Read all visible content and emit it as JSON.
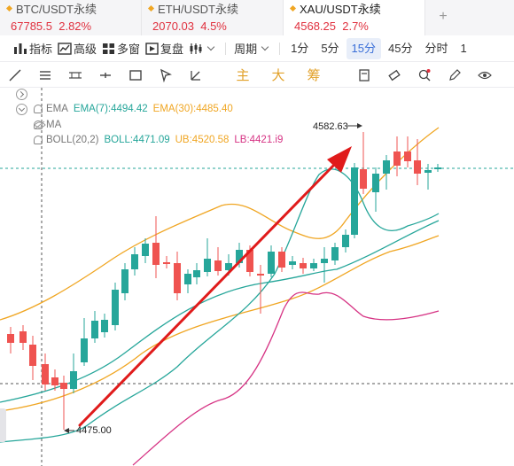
{
  "tabs": [
    {
      "name": "BTC/USDT永续",
      "price": "67785.5",
      "change": "2.82%"
    },
    {
      "name": "ETH/USDT永续",
      "price": "2070.03",
      "change": "4.5%"
    },
    {
      "name": "XAU/USDT永续",
      "price": "4568.25",
      "change": "2.7%",
      "active": true
    }
  ],
  "tab_add": "+",
  "toolbar": {
    "indicators": "指标",
    "advanced": "高级",
    "multi_chart": "多窗",
    "restore": "复盘",
    "period": "周期",
    "intervals": [
      "1分",
      "5分",
      "15分",
      "45分",
      "分时",
      "1"
    ],
    "active_interval": "15分"
  },
  "drawbar": {
    "chars": [
      "主",
      "大",
      "筹"
    ]
  },
  "indicators": {
    "ema": {
      "label": "EMA",
      "ema7": "EMA(7):4494.42",
      "ema30": "EMA(30):4485.40"
    },
    "ma": {
      "label": "MA"
    },
    "boll": {
      "label": "BOLL(20,2)",
      "boll": "BOLL:4471.09",
      "ub": "UB:4520.58",
      "lb": "LB:4421.i9"
    }
  },
  "annotations": {
    "high": "4582.63",
    "low": "4475.00"
  },
  "colors": {
    "up": "#26a69a",
    "down": "#ef5350",
    "ema7": "#26a69a",
    "ema30": "#f0a623",
    "boll_mid": "#26a69a",
    "boll_ub": "#f0a623",
    "boll_lb": "#d63384",
    "arrow": "#e01b1b",
    "accent": "#3a6fd8"
  }
}
